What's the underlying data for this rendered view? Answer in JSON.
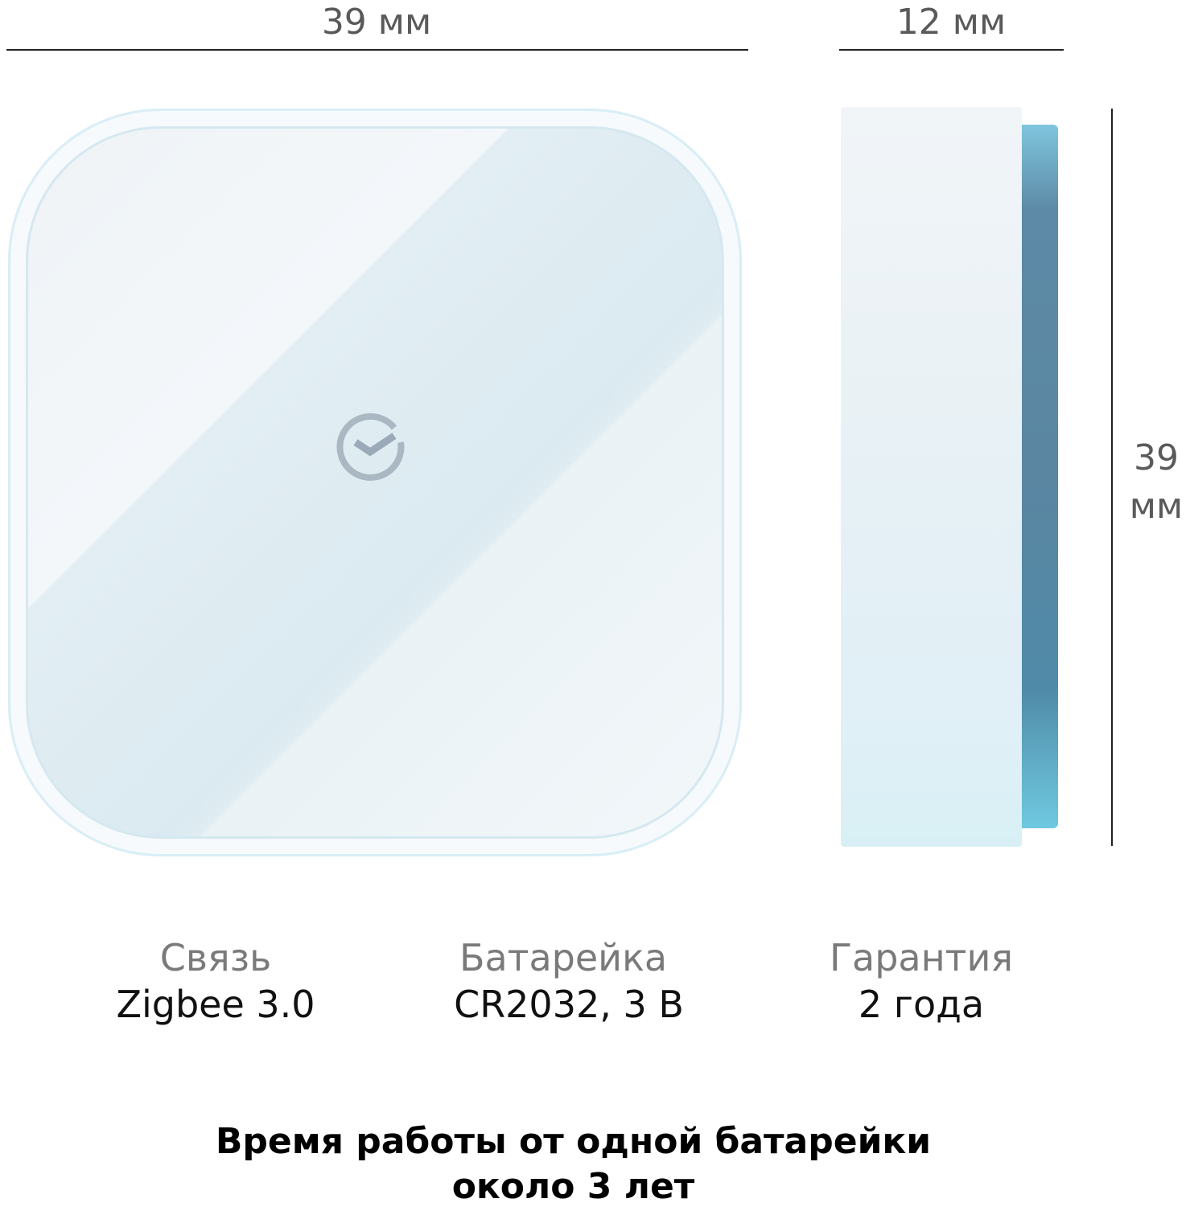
{
  "dimensions": {
    "width_label": "39 мм",
    "depth_label": "12 мм",
    "height_value": "39",
    "height_unit": "мм"
  },
  "product": {
    "logo_icon": "sber-check-circle-icon",
    "colors": {
      "body": "#eef4f7",
      "back_plate": "#5a86a1",
      "accent_edge": "#7fc6de"
    }
  },
  "specs": [
    {
      "label": "Связь",
      "value": "Zigbee 3.0"
    },
    {
      "label": "Батарейка",
      "value": "CR2032, 3 В"
    },
    {
      "label": "Гарантия",
      "value": "2 года"
    }
  ],
  "footer": {
    "line1": "Время работы от одной батарейки",
    "line2": "около 3 лет"
  }
}
